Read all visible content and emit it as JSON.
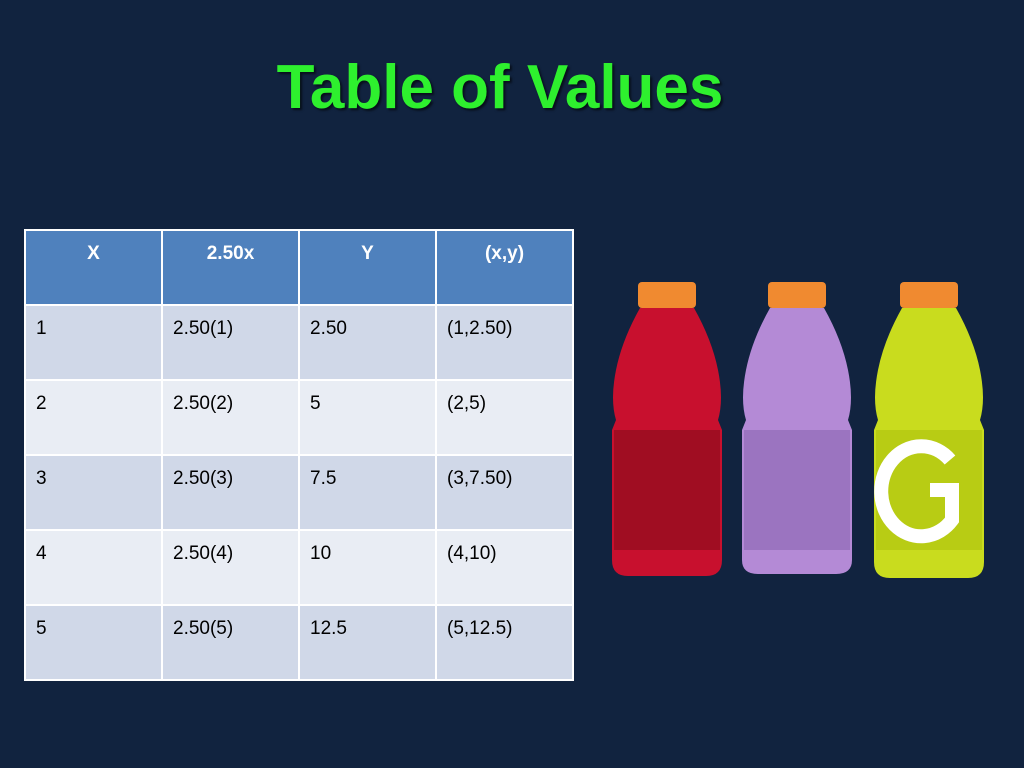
{
  "title": "Table of Values",
  "table": {
    "header": [
      "X",
      "2.50x",
      "Y",
      "(x,y)"
    ],
    "rows": [
      [
        "1",
        "2.50(1)",
        "2.50",
        "(1,2.50)"
      ],
      [
        "2",
        "2.50(2)",
        "5",
        "(2,5)"
      ],
      [
        "3",
        "2.50(3)",
        "7.5",
        "(3,7.50)"
      ],
      [
        "4",
        "2.50(4)",
        "10",
        "(4,10)"
      ],
      [
        "5",
        "2.50(5)",
        "12.5",
        "(5,12.5)"
      ]
    ]
  }
}
